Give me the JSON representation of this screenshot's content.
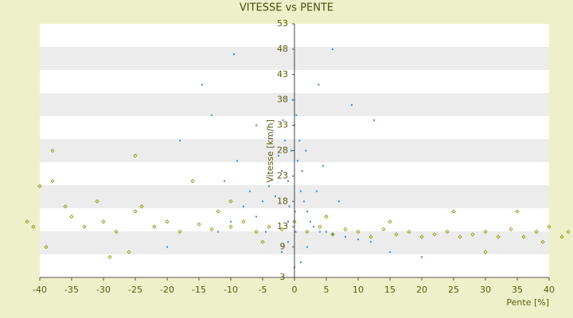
{
  "chart_data": {
    "type": "scatter",
    "title": "VITESSE vs PENTE",
    "x_label": "Pente [%]",
    "y_label": "Vitesse [km/h]",
    "xlim": [
      -40,
      40
    ],
    "xticks": [
      -40,
      -35,
      -30,
      -25,
      -20,
      -15,
      -10,
      -5,
      0,
      5,
      10,
      15,
      20,
      25,
      30,
      35,
      40
    ],
    "ylim": [
      3,
      53
    ],
    "yticks": [
      3,
      9,
      13,
      18,
      23,
      28,
      33,
      38,
      43,
      48,
      53
    ],
    "series": [
      {
        "color": "#3f88d4",
        "marker": "dot",
        "x": [
          -1,
          -0.5,
          0,
          0.5,
          1,
          1.5,
          2,
          -2,
          -3,
          -1.5,
          0.3,
          -0.8,
          2.5,
          3,
          4,
          -4,
          -5,
          -6,
          5,
          6,
          -1,
          0.2,
          1.2,
          -2.5,
          -0.3,
          0.8,
          -7,
          -8,
          -10,
          -12,
          8,
          10,
          12,
          -9,
          -11,
          3.5,
          -3.5,
          1.8,
          -1.8,
          0.1,
          6,
          -9.5,
          -14.5,
          3.8,
          9,
          12.5,
          -18,
          -13,
          15,
          20,
          -20,
          2,
          -2,
          0,
          1,
          -1,
          4.5,
          -6,
          7,
          -4.5
        ],
        "y": [
          22,
          28,
          33,
          26,
          20,
          18,
          16,
          24,
          19,
          30,
          35,
          17,
          14,
          13,
          12,
          21,
          18,
          15,
          12,
          11.5,
          14,
          12,
          24,
          27,
          38,
          30,
          20,
          17,
          14,
          12,
          11,
          10.5,
          10,
          26,
          22,
          20,
          31,
          28,
          34,
          16,
          48,
          47,
          41,
          41,
          37,
          34,
          30,
          35,
          8,
          7,
          9,
          9,
          8,
          5,
          6,
          10,
          25,
          33,
          18,
          12
        ]
      },
      {
        "color": "#8c8c00",
        "marker": "diamond",
        "x": [
          -40,
          -38,
          -39,
          -35,
          -33,
          -30,
          -28,
          -25,
          -22,
          -20,
          -18,
          -15,
          -13,
          -10,
          -8,
          -6,
          -4,
          -2,
          0,
          2,
          4,
          6,
          8,
          10,
          12,
          14,
          16,
          18,
          20,
          22,
          24,
          26,
          28,
          30,
          32,
          34,
          36,
          38,
          40,
          42,
          -41,
          -36,
          -31,
          -24,
          -26,
          -16,
          -12,
          -5,
          5,
          15,
          25,
          35,
          -38,
          -25,
          -10,
          30,
          -29,
          39,
          -42,
          43
        ],
        "y": [
          21,
          22,
          9,
          15,
          13,
          14,
          12,
          16,
          13,
          14,
          12,
          13.5,
          12.5,
          13,
          14,
          12,
          13,
          12.5,
          14,
          12,
          13,
          11.5,
          12.5,
          12,
          11,
          12.5,
          11.5,
          12,
          11,
          11.5,
          12,
          11,
          11.5,
          12,
          11,
          12.5,
          11,
          12,
          13,
          11,
          13,
          17,
          18,
          17,
          8,
          22,
          16,
          10,
          15,
          14,
          16,
          16,
          28,
          27,
          18,
          8,
          7,
          10,
          14,
          12
        ]
      }
    ]
  }
}
